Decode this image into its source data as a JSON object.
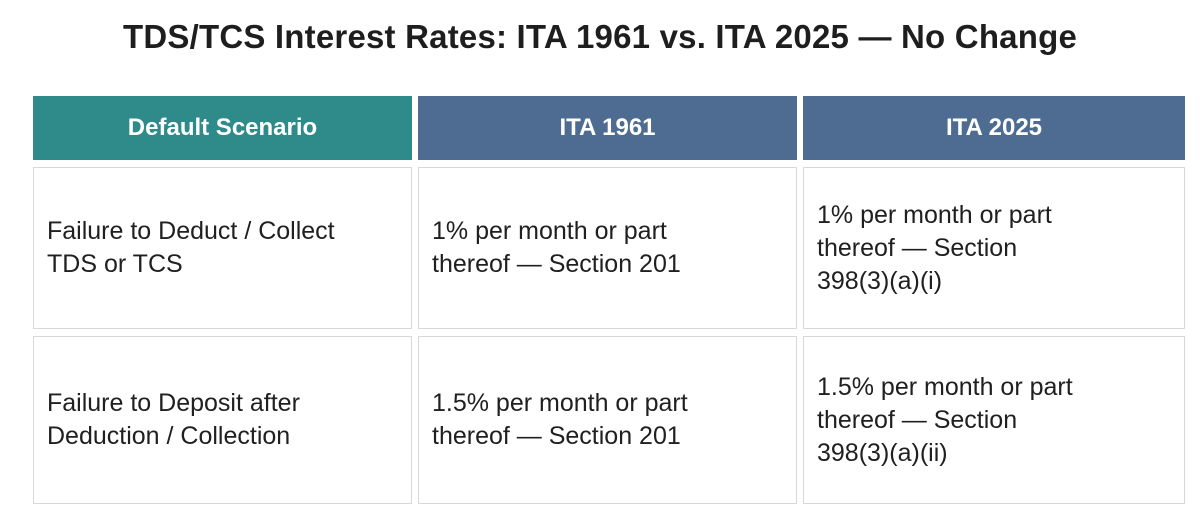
{
  "title": "TDS/TCS Interest Rates: ITA 1961 vs. ITA 2025 — No Change",
  "colors": {
    "header_teal": "#2f8a8a",
    "header_slate": "#4e6c92",
    "cell_border": "#d8d8d8"
  },
  "table": {
    "headers": [
      "Default Scenario",
      "ITA 1961",
      "ITA 2025"
    ],
    "rows": [
      {
        "scenario": [
          "Failure to Deduct / Collect",
          "TDS or TCS"
        ],
        "ita_1961": [
          "1% per month or part",
          "thereof — Section 201"
        ],
        "ita_2025": [
          "1% per month or part",
          "thereof — Section",
          "398(3)(a)(i)"
        ]
      },
      {
        "scenario": [
          "Failure to Deposit after",
          "Deduction / Collection"
        ],
        "ita_1961": [
          "1.5% per month or part",
          "thereof — Section 201"
        ],
        "ita_2025": [
          "1.5% per month or part",
          "thereof — Section",
          "398(3)(a)(ii)"
        ]
      }
    ]
  }
}
